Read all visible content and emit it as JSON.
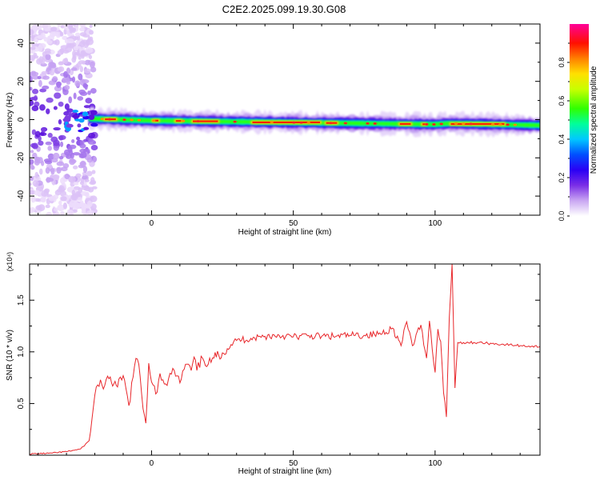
{
  "title": "C2E2.2025.099.19.30.G08",
  "chart_data": [
    {
      "type": "heatmap",
      "title": "C2E2.2025.099.19.30.G08",
      "xlabel": "Height of straight line (km)",
      "ylabel": "Frequency (Hz)",
      "xlim": [
        -43,
        137
      ],
      "ylim": [
        -50,
        50
      ],
      "x_ticks": [
        0,
        50,
        100
      ],
      "y_ticks": [
        -40,
        -20,
        0,
        20,
        40
      ],
      "colorbar": {
        "label": "Normalized spectral amplitude",
        "range": [
          0,
          1
        ],
        "ticks": [
          0.0,
          0.2,
          0.4,
          0.6,
          0.8
        ],
        "colormap": [
          "#ffffff",
          "#b98af0",
          "#5a00e0",
          "#0000ff",
          "#00c8ff",
          "#00ff80",
          "#40ff00",
          "#ffff00",
          "#ff8000",
          "#ff0000",
          "#ff00a0"
        ]
      },
      "ridge": {
        "description": "narrow high-amplitude band centred near 0 Hz from about -22 km to the right edge; diffuse low-amplitude scatter for heights below -22 km",
        "center_frequency_hz": [
          [
            -22,
            0.5
          ],
          [
            0,
            -0.5
          ],
          [
            25,
            -1.0
          ],
          [
            50,
            -1.5
          ],
          [
            75,
            -2.0
          ],
          [
            100,
            -2.5
          ],
          [
            105,
            -2.0
          ],
          [
            137,
            -3.0
          ]
        ]
      }
    },
    {
      "type": "line",
      "xlabel": "Height of straight line (km)",
      "ylabel": "SNR (10 * v/v)",
      "y_multiplier": "(x10⁴)",
      "xlim": [
        -43,
        137
      ],
      "ylim": [
        0,
        18500
      ],
      "x_ticks": [
        0,
        50,
        100
      ],
      "y_ticks": [
        5000,
        10000,
        15000
      ],
      "y_tick_labels": [
        "0.5",
        "1.0",
        "1.5"
      ],
      "series_color": "#e8262a",
      "x": [
        -43,
        -35,
        -30,
        -25,
        -22,
        -20,
        -19,
        -18,
        -17,
        -15,
        -12,
        -10,
        -8,
        -6,
        -5,
        -4,
        -3,
        -2,
        -1,
        0,
        1,
        2,
        3,
        4,
        5,
        6,
        8,
        10,
        12,
        14,
        15,
        16,
        18,
        20,
        22,
        25,
        28,
        30,
        35,
        40,
        45,
        50,
        55,
        60,
        65,
        70,
        75,
        80,
        85,
        88,
        90,
        92,
        95,
        97,
        98,
        100,
        101,
        102,
        103,
        104,
        105,
        106,
        107,
        108,
        110,
        115,
        120,
        125,
        130,
        137
      ],
      "y": [
        120,
        200,
        350,
        600,
        1400,
        5800,
        6800,
        7300,
        6400,
        7400,
        6600,
        7700,
        4800,
        8600,
        9300,
        7600,
        4500,
        3100,
        8900,
        7100,
        6700,
        6100,
        7900,
        7300,
        6900,
        7400,
        8200,
        7000,
        8800,
        8200,
        9500,
        8200,
        9400,
        8800,
        9400,
        9900,
        10700,
        11100,
        11300,
        11500,
        11600,
        11450,
        11550,
        11500,
        11500,
        11600,
        11600,
        11700,
        12300,
        10600,
        12900,
        10600,
        12600,
        9400,
        13000,
        8000,
        12200,
        11000,
        6000,
        3700,
        13300,
        18500,
        6500,
        10900,
        10900,
        10900,
        10800,
        10700,
        10600,
        10500
      ]
    }
  ]
}
